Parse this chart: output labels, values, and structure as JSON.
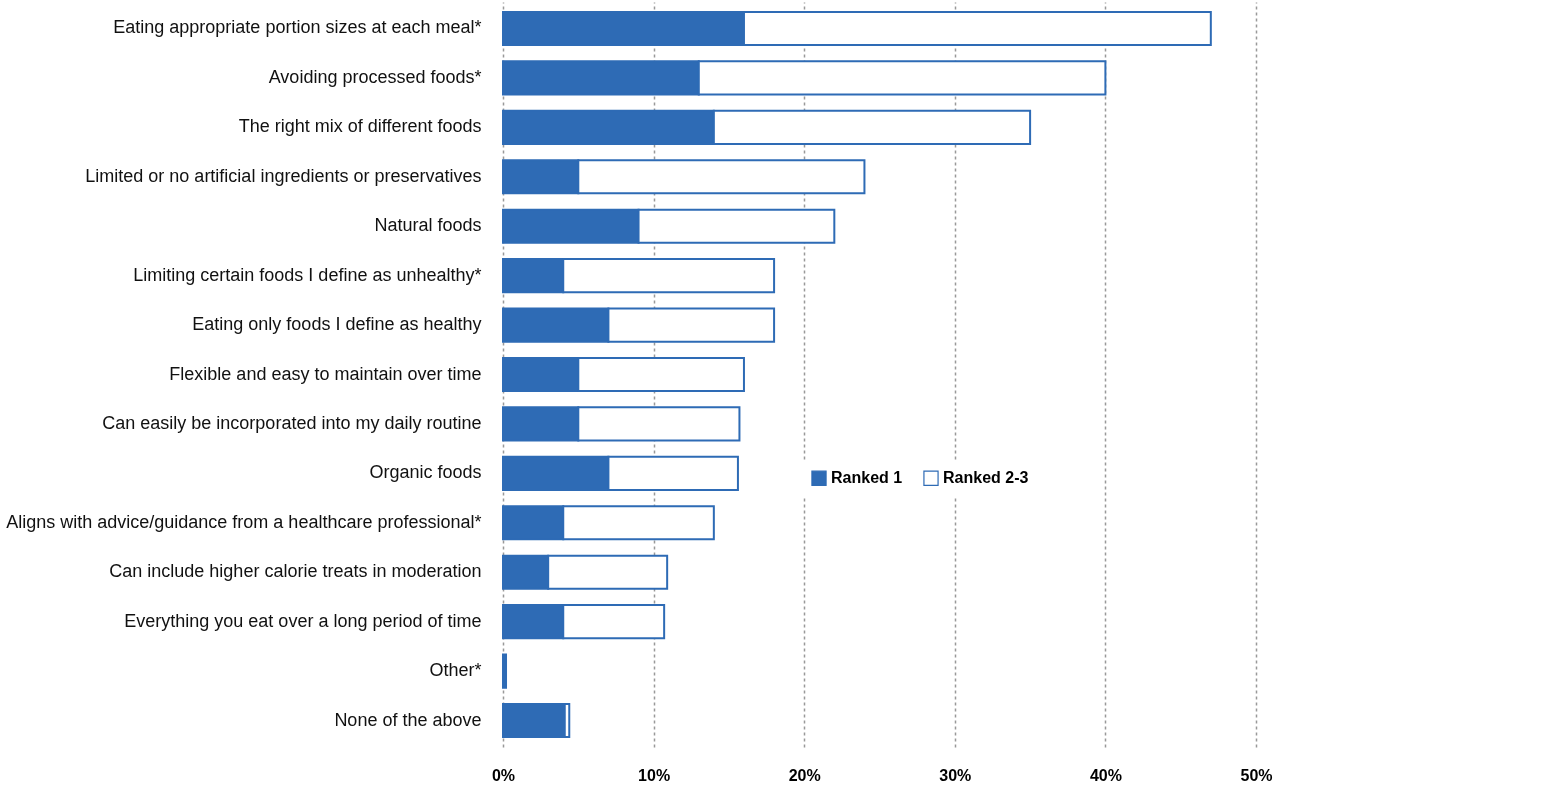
{
  "chart_data": {
    "type": "bar",
    "orientation": "horizontal",
    "stacked": true,
    "categories": [
      "Eating appropriate portion sizes at each meal*",
      "Avoiding processed foods*",
      "The right mix of different foods",
      "Limited or no artificial ingredients or preservatives",
      "Natural foods",
      "Limiting certain foods I define as unhealthy*",
      "Eating only foods I define as healthy",
      "Flexible and easy to maintain over time",
      "Can easily be incorporated into my daily routine",
      "Organic foods",
      "Aligns with advice/guidance from a healthcare professional*",
      "Can include higher calorie treats in moderation",
      "Everything you eat over a long period of time",
      "Other*",
      "None of the above"
    ],
    "series": [
      {
        "name": "Ranked 1",
        "color": "#2e6bb5",
        "values": [
          16,
          13,
          14,
          5,
          9,
          4,
          7,
          5,
          5,
          7,
          4,
          3,
          4,
          0.2,
          4.1
        ]
      },
      {
        "name": "Ranked 2-3",
        "color": "#ffffff",
        "values": [
          31,
          27,
          21,
          19,
          13,
          14,
          11,
          11,
          10.7,
          8.6,
          10,
          7.9,
          6.7,
          null,
          0.3
        ]
      }
    ],
    "xlim": [
      0,
      50
    ],
    "xticks": [
      {
        "value": 0,
        "label": "0%"
      },
      {
        "value": 10,
        "label": "10%"
      },
      {
        "value": 20,
        "label": "20%"
      },
      {
        "value": 30,
        "label": "30%"
      },
      {
        "value": 40,
        "label": "40%"
      },
      {
        "value": 50,
        "label": "50%"
      }
    ],
    "grid": "x",
    "legend": "right"
  }
}
